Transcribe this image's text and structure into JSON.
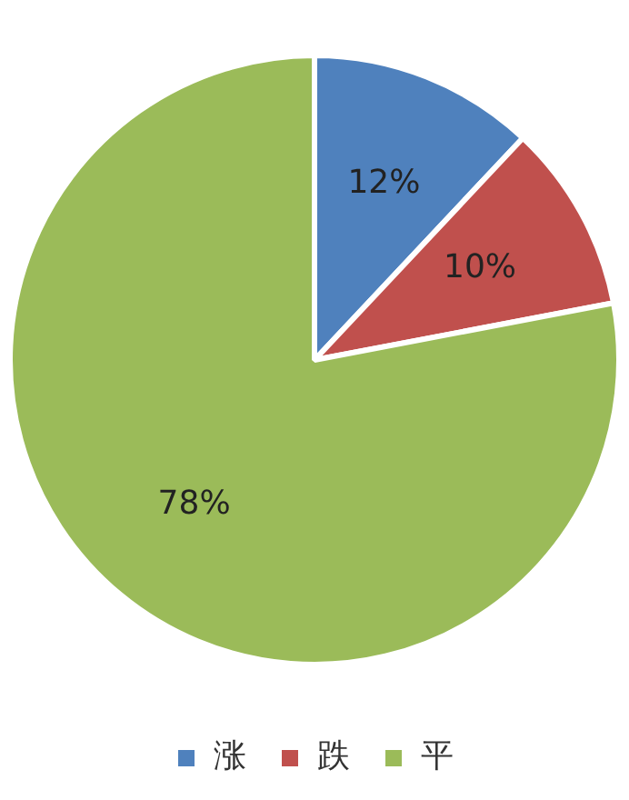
{
  "chart_data": {
    "type": "pie",
    "categories": [
      "涨",
      "跌",
      "平"
    ],
    "values": [
      12,
      10,
      78
    ],
    "colors": [
      "#4f81bd",
      "#c0504d",
      "#9bbb59"
    ],
    "value_labels": [
      "12%",
      "10%",
      "78%"
    ],
    "legend": "bottom"
  }
}
